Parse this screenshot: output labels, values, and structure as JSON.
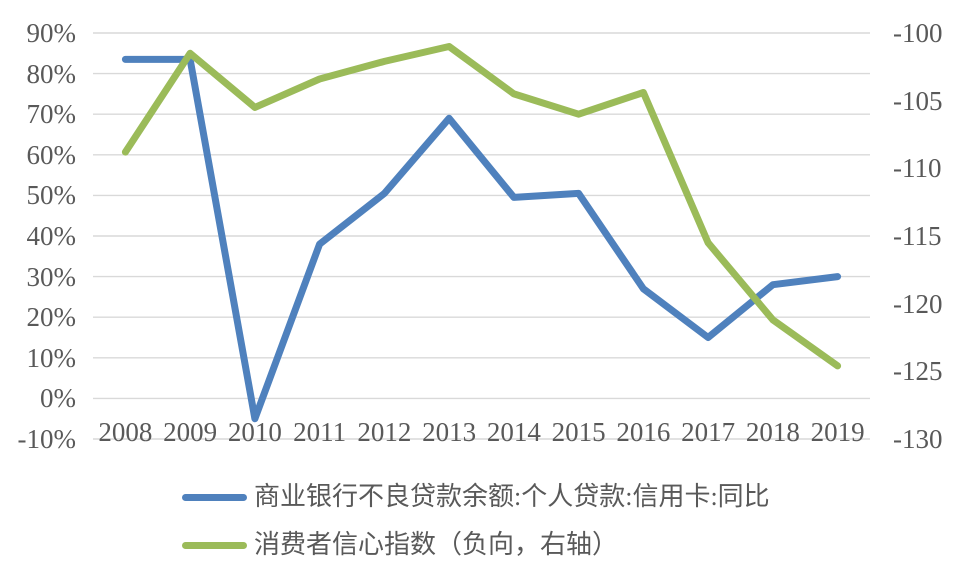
{
  "chart_data": {
    "type": "line",
    "categories": [
      "2008",
      "2009",
      "2010",
      "2011",
      "2012",
      "2013",
      "2014",
      "2015",
      "2016",
      "2017",
      "2018",
      "2019"
    ],
    "series": [
      {
        "name": "商业银行不良贷款余额:个人贷款:信用卡:同比",
        "axis": "left",
        "color": "#4F81BD",
        "values": [
          83.5,
          83.5,
          -5,
          38,
          50.5,
          69,
          49.5,
          50.5,
          27,
          15,
          28,
          30
        ]
      },
      {
        "name": "消费者信心指数（负向，右轴）",
        "axis": "right",
        "color": "#9BBB59",
        "values": [
          -108.8,
          -101.5,
          -105.5,
          -103.4,
          -102.1,
          -101.0,
          -104.5,
          -106.0,
          -104.4,
          -115.5,
          -121.2,
          -124.6
        ]
      }
    ],
    "left_axis": {
      "min": -10,
      "max": 90,
      "step": 10,
      "ticks": [
        "90%",
        "80%",
        "70%",
        "60%",
        "50%",
        "40%",
        "30%",
        "20%",
        "10%",
        "0%",
        "-10%"
      ]
    },
    "right_axis": {
      "min": -130,
      "max": -100,
      "step": 5,
      "ticks": [
        "-100",
        "-105",
        "-110",
        "-115",
        "-120",
        "-125",
        "-130"
      ]
    },
    "title": "",
    "xlabel": "",
    "ylabel": "",
    "grid": true,
    "legend_position": "bottom",
    "colors": {
      "gridline": "#D9D9D9",
      "tick_text": "#595959",
      "background": "#FFFFFF"
    }
  }
}
